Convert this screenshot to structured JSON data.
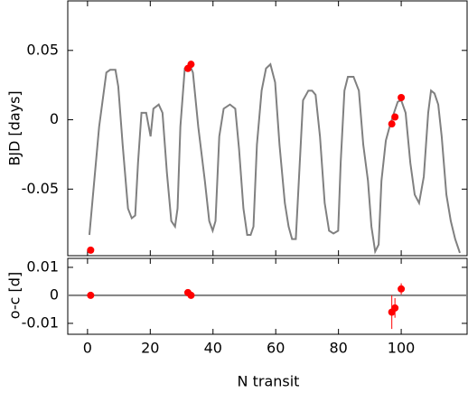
{
  "chart_data": [
    {
      "type": "line",
      "ylabel": "BJD [days]",
      "xlim": [
        -6.3,
        121
      ],
      "ylim": [
        -0.098,
        0.0857
      ],
      "xticks": [
        0,
        20,
        40,
        60,
        80,
        100
      ],
      "yticks": [
        0.05,
        0,
        -0.05
      ],
      "series": [
        {
          "style": "line",
          "color": "#808080",
          "x": [
            0.6,
            3.7,
            6.0,
            7.2,
            8.9,
            9.8,
            11.2,
            12.9,
            14.1,
            15.2,
            16.1,
            17.2,
            18.7,
            20.1,
            21.0,
            22.7,
            23.9,
            25.3,
            26.7,
            27.9,
            28.7,
            29.6,
            31.0,
            32.5,
            33.6,
            35.3,
            37.4,
            38.8,
            39.9,
            40.8,
            42.0,
            43.4,
            45.4,
            47.1,
            48.3,
            49.7,
            50.9,
            52.0,
            52.9,
            54.0,
            55.5,
            56.9,
            58.3,
            59.8,
            61.2,
            62.9,
            64.1,
            65.2,
            66.4,
            67.5,
            68.7,
            70.4,
            71.6,
            72.7,
            74.1,
            75.6,
            77.0,
            78.4,
            79.9,
            80.7,
            81.9,
            83.0,
            84.8,
            86.5,
            87.9,
            89.4,
            90.5,
            91.7,
            92.8,
            93.7,
            95.1,
            96.3,
            97.7,
            98.9,
            100.0,
            101.4,
            102.9,
            104.3,
            105.7,
            107.2,
            108.6,
            109.5,
            110.6,
            111.8,
            112.9,
            114.4,
            115.8,
            117.2,
            118.7
          ],
          "values": [
            -0.083,
            -0.005,
            0.034,
            0.036,
            0.036,
            0.024,
            -0.018,
            -0.064,
            -0.071,
            -0.069,
            -0.031,
            0.005,
            0.005,
            -0.012,
            0.008,
            0.011,
            0.005,
            -0.038,
            -0.073,
            -0.077,
            -0.064,
            -0.005,
            0.037,
            0.04,
            0.034,
            -0.005,
            -0.044,
            -0.073,
            -0.08,
            -0.073,
            -0.012,
            0.008,
            0.011,
            0.008,
            -0.021,
            -0.064,
            -0.083,
            -0.083,
            -0.077,
            -0.018,
            0.021,
            0.037,
            0.04,
            0.027,
            -0.018,
            -0.06,
            -0.077,
            -0.086,
            -0.086,
            -0.038,
            0.014,
            0.021,
            0.021,
            0.018,
            -0.012,
            -0.06,
            -0.08,
            -0.082,
            -0.08,
            -0.031,
            0.021,
            0.031,
            0.031,
            0.021,
            -0.018,
            -0.044,
            -0.077,
            -0.095,
            -0.09,
            -0.044,
            -0.015,
            -0.005,
            0.005,
            0.013,
            0.014,
            0.005,
            -0.031,
            -0.054,
            -0.06,
            -0.041,
            0.005,
            0.021,
            0.019,
            0.011,
            -0.012,
            -0.054,
            -0.073,
            -0.086,
            -0.096
          ]
        },
        {
          "style": "points",
          "color": "#ff0000",
          "x": [
            1,
            32,
            33,
            97,
            98,
            100
          ],
          "values": [
            -0.094,
            0.037,
            0.04,
            -0.003,
            0.002,
            0.016
          ]
        }
      ]
    },
    {
      "type": "scatter",
      "xlabel": "N transit",
      "ylabel": "o-c [d]",
      "xlim": [
        -6.3,
        121
      ],
      "ylim": [
        -0.0139,
        0.0132
      ],
      "xticks": [
        0,
        20,
        40,
        60,
        80,
        100
      ],
      "yticks": [
        0.01,
        0,
        -0.01
      ],
      "hline": 0,
      "series": [
        {
          "color": "#ff0000",
          "x": [
            1,
            32,
            33,
            97,
            98,
            100
          ],
          "values": [
            0,
            0.001,
            0,
            -0.006,
            -0.0045,
            0.0023
          ],
          "errors": [
            0.0004,
            0.0005,
            0.0005,
            0.006,
            0.0035,
            0.002
          ]
        }
      ]
    }
  ]
}
